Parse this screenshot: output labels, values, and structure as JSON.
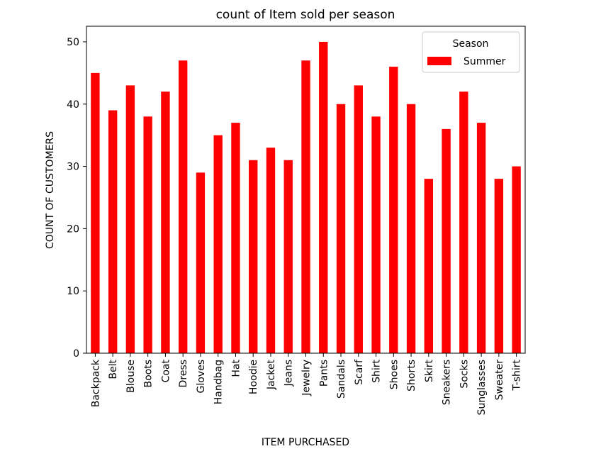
{
  "chart_data": {
    "type": "bar",
    "title": "count of Item sold per season",
    "xlabel": "ITEM PURCHASED",
    "ylabel": "COUNT OF CUSTOMERS",
    "categories": [
      "Backpack",
      "Belt",
      "Blouse",
      "Boots",
      "Coat",
      "Dress",
      "Gloves",
      "Handbag",
      "Hat",
      "Hoodie",
      "Jacket",
      "Jeans",
      "Jewelry",
      "Pants",
      "Sandals",
      "Scarf",
      "Shirt",
      "Shoes",
      "Shorts",
      "Skirt",
      "Sneakers",
      "Socks",
      "Sunglasses",
      "Sweater",
      "T-shirt"
    ],
    "series": [
      {
        "name": "Summer",
        "color": "#ff0000",
        "values": [
          45,
          39,
          43,
          38,
          42,
          47,
          29,
          35,
          37,
          31,
          33,
          31,
          47,
          50,
          40,
          43,
          38,
          46,
          40,
          28,
          36,
          42,
          37,
          28,
          30
        ]
      }
    ],
    "ylim": [
      0,
      52.5
    ],
    "yticks": [
      0,
      10,
      20,
      30,
      40,
      50
    ],
    "legend": {
      "title": "Season",
      "position": "top-right"
    },
    "grid": false
  }
}
